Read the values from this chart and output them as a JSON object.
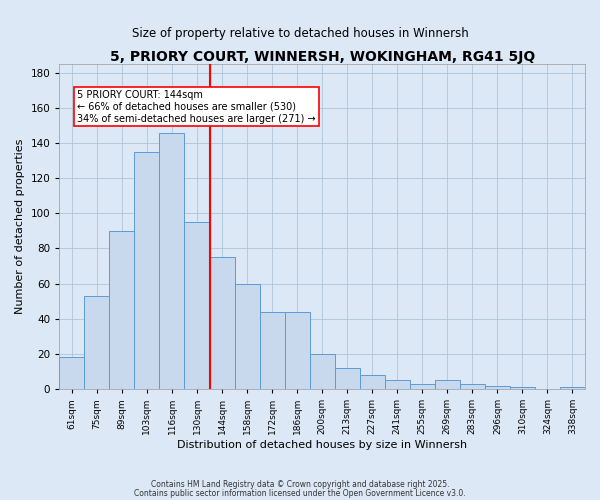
{
  "title": "5, PRIORY COURT, WINNERSH, WOKINGHAM, RG41 5JQ",
  "subtitle": "Size of property relative to detached houses in Winnersh",
  "xlabel": "Distribution of detached houses by size in Winnersh",
  "ylabel": "Number of detached properties",
  "categories": [
    "61sqm",
    "75sqm",
    "89sqm",
    "103sqm",
    "116sqm",
    "130sqm",
    "144sqm",
    "158sqm",
    "172sqm",
    "186sqm",
    "200sqm",
    "213sqm",
    "227sqm",
    "241sqm",
    "255sqm",
    "269sqm",
    "283sqm",
    "296sqm",
    "310sqm",
    "324sqm",
    "338sqm"
  ],
  "values": [
    18,
    53,
    90,
    135,
    146,
    95,
    75,
    60,
    44,
    44,
    20,
    12,
    8,
    5,
    3,
    5,
    3,
    2,
    1,
    0,
    1
  ],
  "bar_color": "#c8d9ee",
  "bar_edge_color": "#5b9bd5",
  "red_line_index": 5,
  "annotation_lines": [
    "5 PRIORY COURT: 144sqm",
    "← 66% of detached houses are smaller (530)",
    "34% of semi-detached houses are larger (271) →"
  ],
  "ylim": [
    0,
    185
  ],
  "yticks": [
    0,
    20,
    40,
    60,
    80,
    100,
    120,
    140,
    160,
    180
  ],
  "footer_line1": "Contains HM Land Registry data © Crown copyright and database right 2025.",
  "footer_line2": "Contains public sector information licensed under the Open Government Licence v3.0.",
  "background_color": "#dce8f5",
  "plot_bg_color": "#dce8f5",
  "title_fontsize": 10,
  "subtitle_fontsize": 8.5
}
